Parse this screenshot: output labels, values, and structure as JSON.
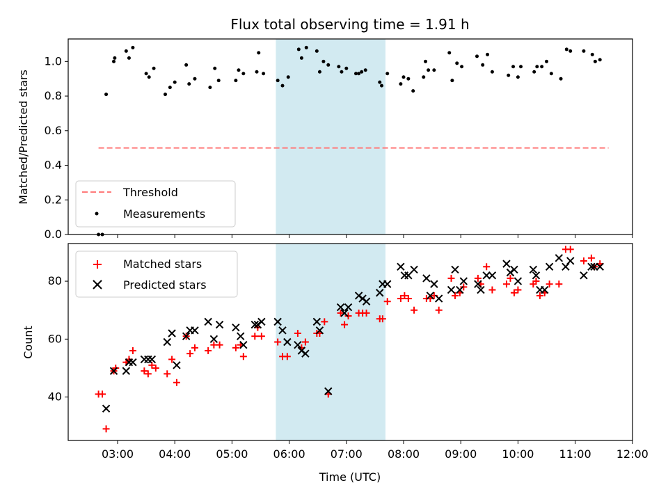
{
  "colors": {
    "threshold": "#ff7a7a",
    "measurement": "#000000",
    "matched": "#ff0000",
    "predicted": "#000000",
    "shade": "#add8e6"
  },
  "chart_data": [
    {
      "type": "scatter",
      "title": "Flux total observing time = 1.91 h",
      "ylabel": "Matched/Predicted stars",
      "xlabel": "",
      "ylim": [
        0,
        1.13
      ],
      "yticks": [
        "0.0",
        "0.2",
        "0.4",
        "0.6",
        "0.8",
        "1.0"
      ],
      "legend_position": "lower-left",
      "shaded_interval": [
        "05:46",
        "07:41"
      ],
      "threshold": {
        "name": "Threshold",
        "value": 0.5,
        "x_range": [
          "02:40",
          "11:35"
        ]
      },
      "series": [
        {
          "name": "Measurements",
          "points": [
            [
              "02:40",
              0.0
            ],
            [
              "02:44",
              0.0
            ],
            [
              "02:48",
              0.81
            ],
            [
              "02:56",
              1.0
            ],
            [
              "02:57",
              1.02
            ],
            [
              "03:09",
              1.06
            ],
            [
              "03:12",
              1.02
            ],
            [
              "03:16",
              1.08
            ],
            [
              "03:30",
              0.93
            ],
            [
              "03:33",
              0.91
            ],
            [
              "03:38",
              0.96
            ],
            [
              "03:50",
              0.81
            ],
            [
              "03:55",
              0.85
            ],
            [
              "04:00",
              0.88
            ],
            [
              "04:12",
              0.98
            ],
            [
              "04:15",
              0.87
            ],
            [
              "04:21",
              0.9
            ],
            [
              "04:37",
              0.85
            ],
            [
              "04:42",
              0.96
            ],
            [
              "04:46",
              0.89
            ],
            [
              "05:04",
              0.89
            ],
            [
              "05:07",
              0.95
            ],
            [
              "05:12",
              0.93
            ],
            [
              "05:26",
              0.94
            ],
            [
              "05:28",
              1.05
            ],
            [
              "05:33",
              0.93
            ],
            [
              "05:48",
              0.89
            ],
            [
              "05:53",
              0.86
            ],
            [
              "05:59",
              0.91
            ],
            [
              "06:10",
              1.07
            ],
            [
              "06:13",
              1.02
            ],
            [
              "06:18",
              1.08
            ],
            [
              "06:29",
              1.06
            ],
            [
              "06:32",
              0.94
            ],
            [
              "06:36",
              1.0
            ],
            [
              "06:41",
              0.98
            ],
            [
              "06:52",
              0.97
            ],
            [
              "06:55",
              0.94
            ],
            [
              "07:00",
              0.96
            ],
            [
              "07:10",
              0.93
            ],
            [
              "07:13",
              0.93
            ],
            [
              "07:16",
              0.94
            ],
            [
              "07:20",
              0.95
            ],
            [
              "07:35",
              0.88
            ],
            [
              "07:37",
              0.86
            ],
            [
              "07:43",
              0.93
            ],
            [
              "07:57",
              0.87
            ],
            [
              "08:00",
              0.91
            ],
            [
              "08:05",
              0.9
            ],
            [
              "08:10",
              0.83
            ],
            [
              "08:21",
              0.91
            ],
            [
              "08:23",
              1.0
            ],
            [
              "08:26",
              0.95
            ],
            [
              "08:32",
              0.95
            ],
            [
              "08:48",
              1.05
            ],
            [
              "08:51",
              0.89
            ],
            [
              "08:56",
              0.99
            ],
            [
              "09:01",
              0.97
            ],
            [
              "09:17",
              1.03
            ],
            [
              "09:23",
              0.98
            ],
            [
              "09:28",
              1.04
            ],
            [
              "09:33",
              0.94
            ],
            [
              "09:50",
              0.92
            ],
            [
              "09:55",
              0.97
            ],
            [
              "10:00",
              0.91
            ],
            [
              "10:03",
              0.97
            ],
            [
              "10:17",
              0.94
            ],
            [
              "10:20",
              0.97
            ],
            [
              "10:25",
              0.97
            ],
            [
              "10:30",
              1.0
            ],
            [
              "10:35",
              0.93
            ],
            [
              "10:45",
              0.9
            ],
            [
              "10:51",
              1.07
            ],
            [
              "10:55",
              1.06
            ],
            [
              "11:09",
              1.06
            ],
            [
              "11:18",
              1.04
            ],
            [
              "11:21",
              1.0
            ],
            [
              "11:26",
              1.01
            ]
          ]
        }
      ]
    },
    {
      "type": "scatter",
      "title": "",
      "ylabel": "Count",
      "xlabel": "Time (UTC)",
      "ylim": [
        25,
        93
      ],
      "yticks": [
        "40",
        "60",
        "80"
      ],
      "xticks": [
        "03:00",
        "04:00",
        "05:00",
        "06:00",
        "07:00",
        "08:00",
        "09:00",
        "10:00",
        "11:00",
        "12:00"
      ],
      "legend_position": "upper-left",
      "series": [
        {
          "name": "Matched stars",
          "marker": "plus",
          "points": [
            [
              "02:40",
              41
            ],
            [
              "02:44",
              41
            ],
            [
              "02:48",
              29
            ],
            [
              "02:56",
              49
            ],
            [
              "02:58",
              50
            ],
            [
              "03:09",
              52
            ],
            [
              "03:12",
              53
            ],
            [
              "03:16",
              56
            ],
            [
              "03:28",
              49
            ],
            [
              "03:32",
              48
            ],
            [
              "03:36",
              51
            ],
            [
              "03:40",
              50
            ],
            [
              "03:52",
              48
            ],
            [
              "03:57",
              53
            ],
            [
              "04:02",
              45
            ],
            [
              "04:12",
              61
            ],
            [
              "04:16",
              55
            ],
            [
              "04:21",
              57
            ],
            [
              "04:35",
              56
            ],
            [
              "04:41",
              58
            ],
            [
              "04:47",
              58
            ],
            [
              "05:04",
              57
            ],
            [
              "05:09",
              58
            ],
            [
              "05:12",
              54
            ],
            [
              "05:24",
              61
            ],
            [
              "05:27",
              64
            ],
            [
              "05:31",
              61
            ],
            [
              "05:48",
              59
            ],
            [
              "05:53",
              54
            ],
            [
              "05:58",
              54
            ],
            [
              "06:09",
              62
            ],
            [
              "06:13",
              57
            ],
            [
              "06:17",
              59
            ],
            [
              "06:29",
              62
            ],
            [
              "06:32",
              62
            ],
            [
              "06:37",
              66
            ],
            [
              "06:41",
              41
            ],
            [
              "06:54",
              69
            ],
            [
              "06:58",
              65
            ],
            [
              "07:02",
              68
            ],
            [
              "07:13",
              69
            ],
            [
              "07:17",
              69
            ],
            [
              "07:21",
              69
            ],
            [
              "07:35",
              67
            ],
            [
              "07:38",
              67
            ],
            [
              "07:43",
              73
            ],
            [
              "07:57",
              74
            ],
            [
              "08:01",
              75
            ],
            [
              "08:05",
              74
            ],
            [
              "08:11",
              70
            ],
            [
              "08:24",
              74
            ],
            [
              "08:28",
              74
            ],
            [
              "08:32",
              75
            ],
            [
              "08:37",
              70
            ],
            [
              "08:50",
              81
            ],
            [
              "08:54",
              75
            ],
            [
              "08:59",
              76
            ],
            [
              "09:03",
              78
            ],
            [
              "09:18",
              81
            ],
            [
              "09:21",
              79
            ],
            [
              "09:27",
              85
            ],
            [
              "09:33",
              77
            ],
            [
              "09:48",
              79
            ],
            [
              "09:52",
              81
            ],
            [
              "09:56",
              76
            ],
            [
              "10:00",
              77
            ],
            [
              "10:16",
              79
            ],
            [
              "10:19",
              80
            ],
            [
              "10:23",
              75
            ],
            [
              "10:28",
              76
            ],
            [
              "10:33",
              79
            ],
            [
              "10:43",
              79
            ],
            [
              "10:50",
              91
            ],
            [
              "10:55",
              91
            ],
            [
              "11:09",
              87
            ],
            [
              "11:17",
              88
            ],
            [
              "11:20",
              85
            ],
            [
              "11:26",
              86
            ]
          ]
        },
        {
          "name": "Predicted stars",
          "marker": "x",
          "points": [
            [
              "02:48",
              36
            ],
            [
              "02:56",
              49
            ],
            [
              "03:09",
              49
            ],
            [
              "03:12",
              52
            ],
            [
              "03:16",
              52
            ],
            [
              "03:28",
              53
            ],
            [
              "03:32",
              53
            ],
            [
              "03:36",
              53
            ],
            [
              "03:52",
              59
            ],
            [
              "03:57",
              62
            ],
            [
              "04:02",
              51
            ],
            [
              "04:12",
              61
            ],
            [
              "04:16",
              63
            ],
            [
              "04:21",
              63
            ],
            [
              "04:35",
              66
            ],
            [
              "04:41",
              60
            ],
            [
              "04:47",
              65
            ],
            [
              "05:04",
              64
            ],
            [
              "05:09",
              61
            ],
            [
              "05:12",
              58
            ],
            [
              "05:24",
              65
            ],
            [
              "05:27",
              65
            ],
            [
              "05:31",
              66
            ],
            [
              "05:48",
              66
            ],
            [
              "05:53",
              63
            ],
            [
              "05:58",
              59
            ],
            [
              "06:09",
              58
            ],
            [
              "06:13",
              56
            ],
            [
              "06:17",
              55
            ],
            [
              "06:29",
              66
            ],
            [
              "06:32",
              63
            ],
            [
              "06:41",
              42
            ],
            [
              "06:54",
              71
            ],
            [
              "06:58",
              69
            ],
            [
              "07:02",
              71
            ],
            [
              "07:13",
              75
            ],
            [
              "07:17",
              74
            ],
            [
              "07:21",
              73
            ],
            [
              "07:35",
              76
            ],
            [
              "07:38",
              79
            ],
            [
              "07:43",
              79
            ],
            [
              "07:57",
              85
            ],
            [
              "08:01",
              82
            ],
            [
              "08:05",
              82
            ],
            [
              "08:11",
              84
            ],
            [
              "08:24",
              81
            ],
            [
              "08:28",
              75
            ],
            [
              "08:32",
              79
            ],
            [
              "08:37",
              74
            ],
            [
              "08:50",
              77
            ],
            [
              "08:54",
              84
            ],
            [
              "08:59",
              77
            ],
            [
              "09:03",
              80
            ],
            [
              "09:18",
              79
            ],
            [
              "09:21",
              77
            ],
            [
              "09:27",
              82
            ],
            [
              "09:33",
              82
            ],
            [
              "09:48",
              86
            ],
            [
              "09:52",
              83
            ],
            [
              "09:56",
              84
            ],
            [
              "10:00",
              80
            ],
            [
              "10:16",
              84
            ],
            [
              "10:19",
              82
            ],
            [
              "10:23",
              77
            ],
            [
              "10:28",
              77
            ],
            [
              "10:33",
              85
            ],
            [
              "10:43",
              88
            ],
            [
              "10:50",
              85
            ],
            [
              "10:55",
              87
            ],
            [
              "11:09",
              82
            ],
            [
              "11:17",
              85
            ],
            [
              "11:20",
              85
            ],
            [
              "11:26",
              85
            ]
          ]
        }
      ]
    }
  ]
}
